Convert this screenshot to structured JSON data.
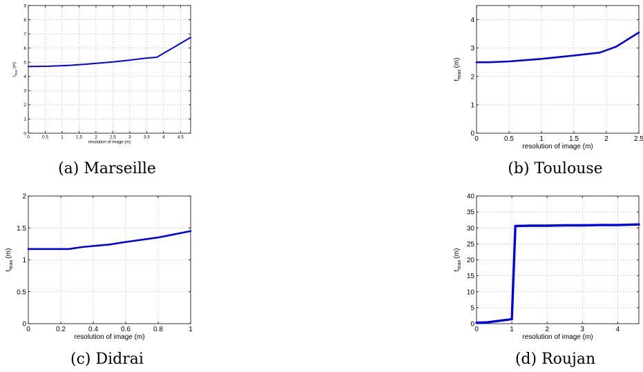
{
  "chart_data": [
    {
      "type": "line",
      "caption": "(a) Marseille",
      "xlabel": "resolution of image (m)",
      "ylabel_main": "t",
      "ylabel_sub": "max",
      "ylabel_unit": "(m)",
      "xlim": [
        0,
        4.8
      ],
      "ylim": [
        0,
        9
      ],
      "xticks": [
        0,
        0.5,
        1,
        1.5,
        2,
        2.5,
        3,
        3.5,
        4,
        4.5
      ],
      "xtick_labels": [
        "0",
        "0.5",
        "1",
        "1.5",
        "2",
        "2.5",
        "3",
        "3.5",
        "4",
        "4.5"
      ],
      "yticks": [
        0,
        1,
        2,
        3,
        4,
        5,
        6,
        7,
        8,
        9
      ],
      "ytick_labels": [
        "0",
        "1",
        "2",
        "3",
        "4",
        "5",
        "6",
        "7",
        "8",
        "9"
      ],
      "grid": true,
      "series": [
        {
          "x": [
            0,
            0.6,
            1.2,
            1.9,
            2.5,
            3.0,
            3.5,
            3.8,
            4.8
          ],
          "y": [
            4.7,
            4.72,
            4.78,
            4.9,
            5.02,
            5.15,
            5.3,
            5.35,
            6.75
          ]
        }
      ]
    },
    {
      "type": "line",
      "caption": "(b) Toulouse",
      "xlabel": "resolution of image (m)",
      "ylabel_main": "t",
      "ylabel_sub": "max",
      "ylabel_unit": "(m)",
      "xlim": [
        0,
        2.5
      ],
      "ylim": [
        0,
        4.5
      ],
      "xticks": [
        0,
        0.5,
        1,
        1.5,
        2,
        2.5
      ],
      "xtick_labels": [
        "0",
        "0.5",
        "1",
        "1.5",
        "2",
        "2.5"
      ],
      "yticks": [
        0,
        1,
        2,
        3,
        4
      ],
      "ytick_labels": [
        "0",
        "1",
        "2",
        "3",
        "4"
      ],
      "grid": true,
      "series": [
        {
          "x": [
            0,
            0.2,
            0.5,
            1.0,
            1.5,
            1.9,
            2.15,
            2.5
          ],
          "y": [
            2.5,
            2.5,
            2.53,
            2.62,
            2.74,
            2.84,
            3.05,
            3.55
          ]
        }
      ]
    },
    {
      "type": "line",
      "caption": "(c) Didrai",
      "xlabel": "resolution of image (m)",
      "ylabel_main": "t",
      "ylabel_sub": "max",
      "ylabel_unit": "(m)",
      "xlim": [
        0,
        1
      ],
      "ylim": [
        0,
        2
      ],
      "xticks": [
        0,
        0.2,
        0.4,
        0.6,
        0.8,
        1
      ],
      "xtick_labels": [
        "0",
        "0.2",
        "0.4",
        "0.6",
        "0.8",
        "1"
      ],
      "yticks": [
        0,
        0.5,
        1,
        1.5,
        2
      ],
      "ytick_labels": [
        "0",
        "0.5",
        "1",
        "1.5",
        "2"
      ],
      "grid": true,
      "series": [
        {
          "x": [
            0,
            0.25,
            0.33,
            0.5,
            0.6,
            0.8,
            1.0
          ],
          "y": [
            1.17,
            1.17,
            1.2,
            1.24,
            1.28,
            1.35,
            1.45
          ]
        }
      ]
    },
    {
      "type": "line",
      "caption": "(d) Roujan",
      "xlabel": "resolution of image (m)",
      "ylabel_main": "t",
      "ylabel_sub": "max",
      "ylabel_unit": "(m)",
      "xlim": [
        0,
        4.6
      ],
      "ylim": [
        0,
        40
      ],
      "xticks": [
        0,
        1,
        2,
        3,
        4
      ],
      "xtick_labels": [
        "0",
        "1",
        "2",
        "3",
        "4"
      ],
      "yticks": [
        0,
        5,
        10,
        15,
        20,
        25,
        30,
        35,
        40
      ],
      "ytick_labels": [
        "0",
        "5",
        "10",
        "15",
        "20",
        "25",
        "30",
        "35",
        "40"
      ],
      "grid": true,
      "series": [
        {
          "x": [
            0,
            0.3,
            1.0,
            1.1,
            1.5,
            2.0,
            2.5,
            3.0,
            3.5,
            4.0,
            4.6
          ],
          "y": [
            0.3,
            0.4,
            1.4,
            30.6,
            30.7,
            30.7,
            30.8,
            30.8,
            30.9,
            30.9,
            31.1
          ]
        }
      ]
    }
  ]
}
